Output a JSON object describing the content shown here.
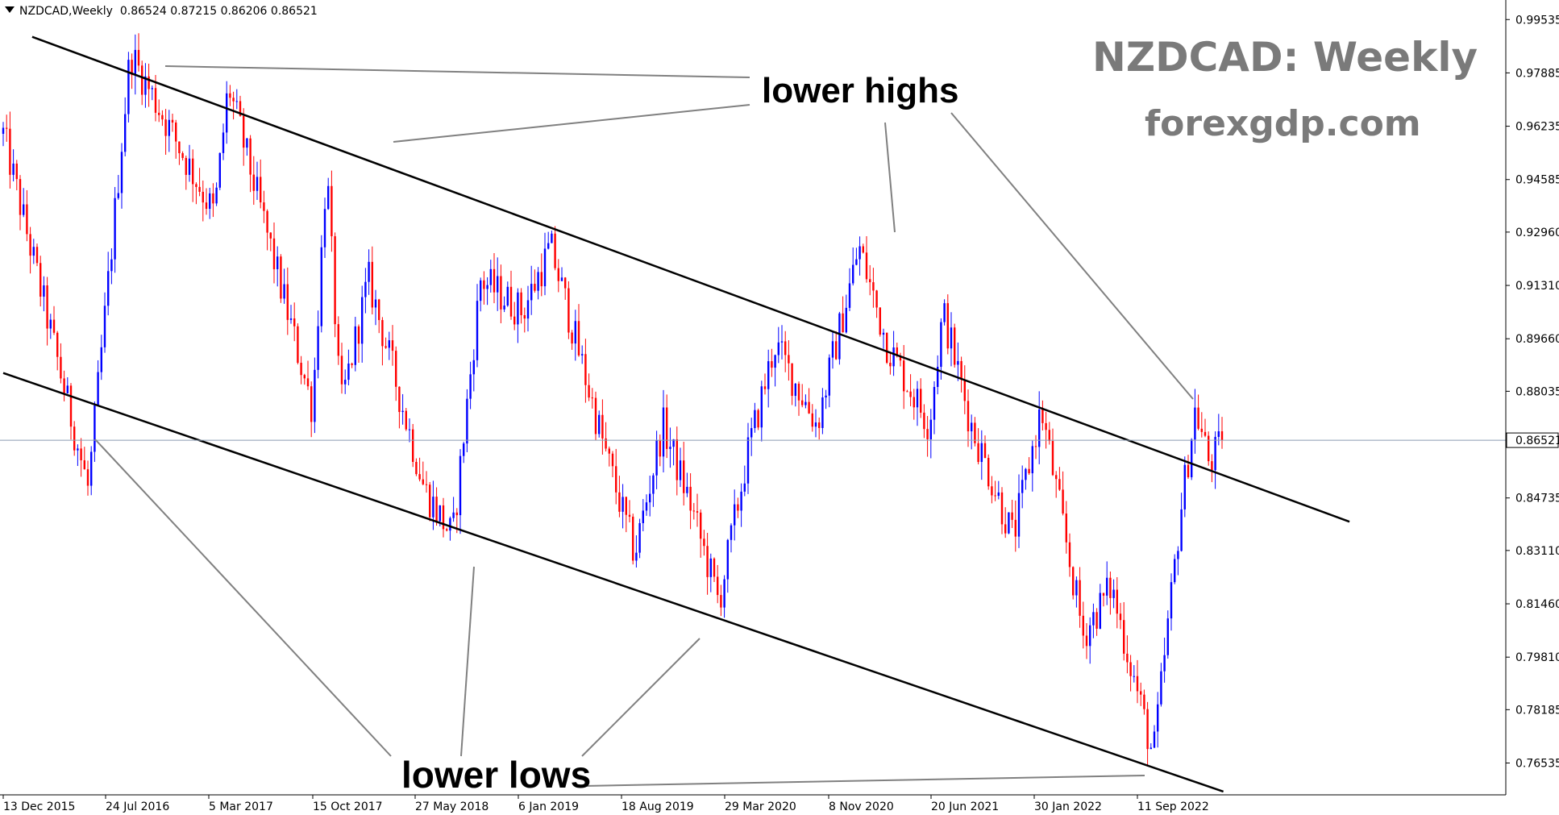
{
  "header": {
    "symbol": "NZDCAD,Weekly",
    "ohlc": "0.86524 0.87215 0.86206 0.86521"
  },
  "watermark": {
    "title": "NZDCAD: Weekly",
    "site": "forexgdp.com"
  },
  "annotations": {
    "lower_highs": "lower highs",
    "lower_lows": "lower lows"
  },
  "colors": {
    "bull": "#0000ff",
    "bear": "#ff0000",
    "trendline": "#000000",
    "pointer": "#808080",
    "current_price_line": "#8a9bb0"
  },
  "chart_data": {
    "type": "candlestick",
    "symbol": "NZDCAD",
    "timeframe": "Weekly",
    "current_price": 0.86521,
    "ylim": [
      0.7555,
      1.0014
    ],
    "y_ticks": [
      "0.99535",
      "0.97885",
      "0.96235",
      "0.94585",
      "0.92960",
      "0.91310",
      "0.89660",
      "0.88035",
      "0.86521",
      "0.84735",
      "0.83110",
      "0.81460",
      "0.79810",
      "0.78185",
      "0.76535"
    ],
    "x_ticks": [
      "13 Dec 2015",
      "24 Jul 2016",
      "5 Mar 2017",
      "15 Oct 2017",
      "27 May 2018",
      "6 Jan 2019",
      "18 Aug 2019",
      "29 Mar 2020",
      "8 Nov 2020",
      "20 Jun 2021",
      "30 Jan 2022",
      "11 Sep 2022"
    ],
    "key_points": [
      {
        "date": "13 Dec 2015",
        "close": 0.96
      },
      {
        "date": "Jun 2016",
        "close": 0.85
      },
      {
        "date": "Sep 2016",
        "close": 0.985
      },
      {
        "date": "Mar 2017",
        "close": 0.935
      },
      {
        "date": "Apr 2017",
        "close": 0.975
      },
      {
        "date": "Oct 2017",
        "close": 0.875
      },
      {
        "date": "Nov 2017",
        "close": 0.95
      },
      {
        "date": "Dec 2017",
        "close": 0.875
      },
      {
        "date": "Feb 2018",
        "close": 0.915
      },
      {
        "date": "Jun 2018",
        "close": 0.85
      },
      {
        "date": "Aug 2018",
        "close": 0.835
      },
      {
        "date": "Oct 2018",
        "close": 0.915
      },
      {
        "date": "Jan 2019",
        "close": 0.905
      },
      {
        "date": "Mar 2019",
        "close": 0.925
      },
      {
        "date": "Jul 2019",
        "close": 0.86
      },
      {
        "date": "Sep 2019",
        "close": 0.83
      },
      {
        "date": "Nov 2019",
        "close": 0.87
      },
      {
        "date": "Jan 2020",
        "close": 0.845
      },
      {
        "date": "Mar 2020",
        "close": 0.815
      },
      {
        "date": "May 2020",
        "close": 0.86
      },
      {
        "date": "Jul 2020",
        "close": 0.895
      },
      {
        "date": "Oct 2020",
        "close": 0.87
      },
      {
        "date": "Jan 2021",
        "close": 0.925
      },
      {
        "date": "Mar 2021",
        "close": 0.895
      },
      {
        "date": "Jun 2021",
        "close": 0.87
      },
      {
        "date": "Jul 2021",
        "close": 0.905
      },
      {
        "date": "Sep 2021",
        "close": 0.87
      },
      {
        "date": "Dec 2021",
        "close": 0.835
      },
      {
        "date": "Feb 2022",
        "close": 0.875
      },
      {
        "date": "May 2022",
        "close": 0.805
      },
      {
        "date": "Jul 2022",
        "close": 0.82
      },
      {
        "date": "Sep 2022",
        "close": 0.785
      },
      {
        "date": "Oct 2022",
        "close": 0.767
      },
      {
        "date": "Dec 2022",
        "close": 0.845
      },
      {
        "date": "Jan 2023",
        "close": 0.875
      },
      {
        "date": "Feb 2023",
        "close": 0.858
      },
      {
        "date": "Mar 2023",
        "close": 0.865
      }
    ],
    "trend_channel": {
      "upper": {
        "start": {
          "date": "Feb 2016",
          "price": 0.99
        },
        "end": {
          "date": "Dec 2023",
          "price": 0.84
        }
      },
      "lower": {
        "start": {
          "date": "13 Dec 2015",
          "price": 0.886
        },
        "end": {
          "date": "Mar 2023",
          "price": 0.7565
        }
      }
    },
    "grid": false,
    "legend": "none"
  }
}
